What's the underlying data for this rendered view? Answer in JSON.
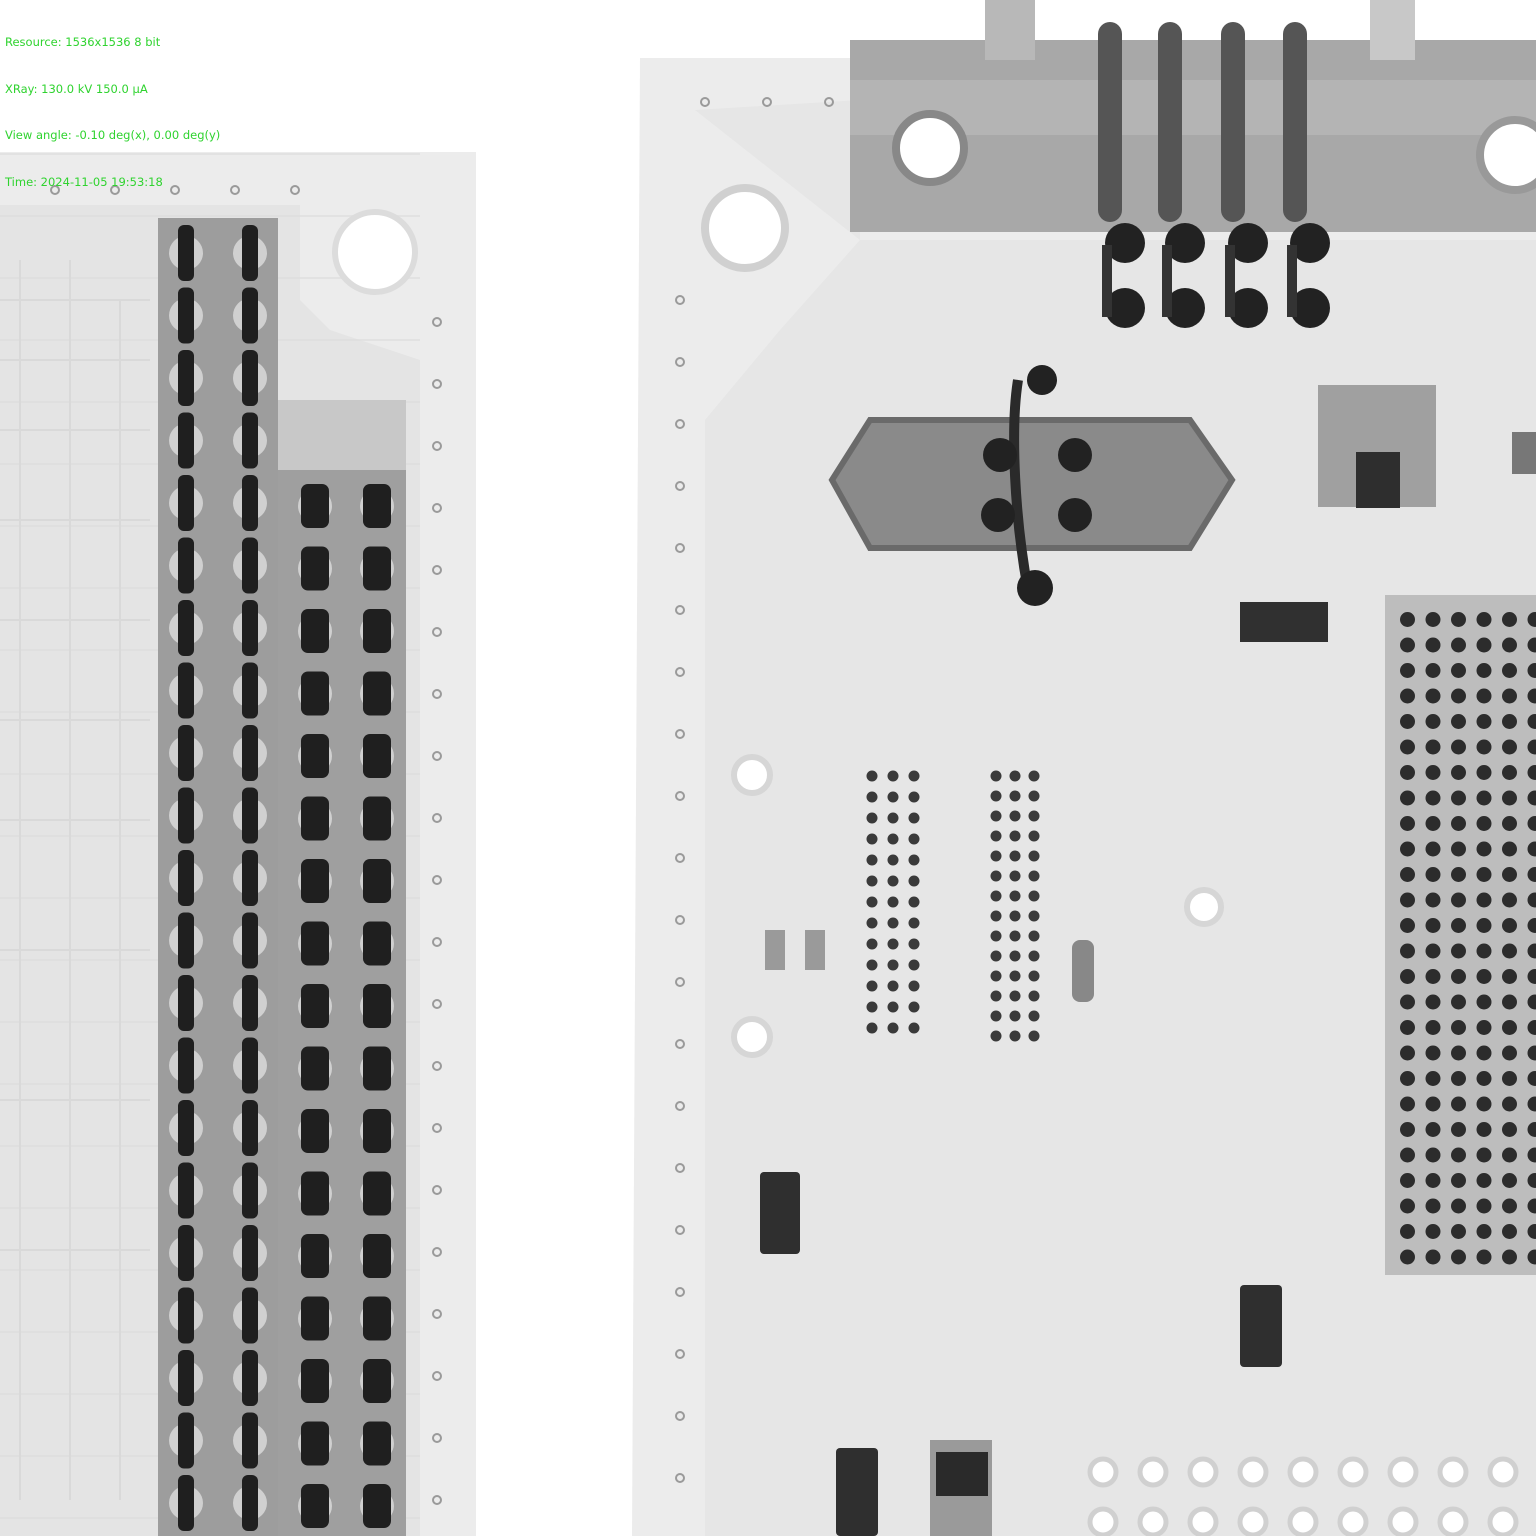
{
  "overlay": {
    "resource": "Resource: 1536x1536 8 bit",
    "xray": "XRay: 130.0 kV 150.0 µA",
    "view_angle": "View angle: -0.10 deg(x), 0.00 deg(y)",
    "time": "Time: 2024-11-05 19:53:18"
  },
  "colors": {
    "background": "#ffffff",
    "board": "#ececec",
    "board_inner": "#e2e2e2",
    "trace": "#d6d6d6",
    "metal_dark": "#2a2a2a",
    "metal_mid": "#8a8a8a",
    "overlay_text": "#2fd32f"
  }
}
